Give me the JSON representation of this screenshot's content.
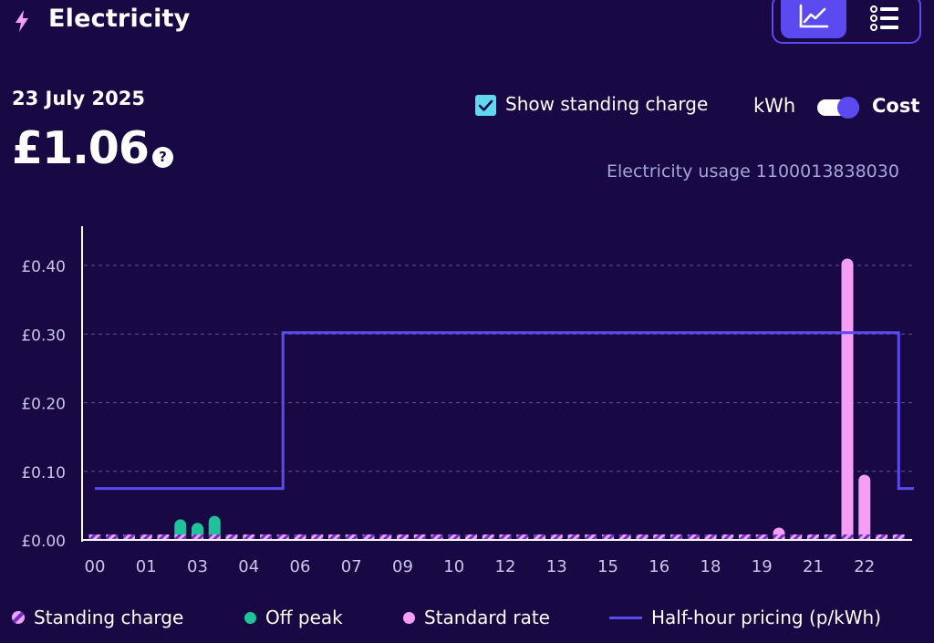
{
  "header": {
    "title": "Electricity",
    "icon": "lightning-icon"
  },
  "view_toggle": {
    "chart_icon": "line-chart-icon",
    "list_icon": "list-icon",
    "active": "chart"
  },
  "summary": {
    "date": "23 July 2025",
    "amount": "£1.06",
    "help_icon": "?"
  },
  "controls": {
    "standing_charge_label": "Show standing charge",
    "standing_charge_checked": true,
    "unit_left": "kWh",
    "unit_right": "Cost",
    "unit_selected": "Cost"
  },
  "usage_label": "Electricity usage 1100013838030",
  "colors": {
    "background": "#180843",
    "off_peak": "#20c29a",
    "standard": "#f59ef5",
    "standing_a": "#f59ef5",
    "standing_b": "#6a32c8",
    "pricing_line": "#5b4af0",
    "grid": "#5d5388"
  },
  "legend": {
    "standing": "Standing charge",
    "off_peak": "Off peak",
    "standard": "Standard rate",
    "pricing": "Half-hour pricing (p/kWh)"
  },
  "chart_data": {
    "type": "bar",
    "ylim": [
      0,
      0.45
    ],
    "yticks": [
      "£0.00",
      "£0.10",
      "£0.20",
      "£0.30",
      "£0.40"
    ],
    "ytick_values": [
      0,
      0.1,
      0.2,
      0.3,
      0.4
    ],
    "xtick_labels": [
      "00",
      "01",
      "03",
      "04",
      "06",
      "07",
      "09",
      "10",
      "12",
      "13",
      "15",
      "16",
      "18",
      "19",
      "21",
      "22"
    ],
    "xtick_slots": [
      0,
      3,
      6,
      9,
      12,
      15,
      18,
      21,
      24,
      27,
      30,
      33,
      36,
      39,
      42,
      45
    ],
    "slot_count": 48,
    "standing_charge": 0.008,
    "series": [
      {
        "name": "Off peak",
        "values": [
          0.01,
          0.01,
          0.01,
          0.01,
          0.01,
          0.03,
          0.025,
          0.035,
          0.01,
          0.01,
          0.01,
          0,
          0,
          0,
          0,
          0,
          0,
          0,
          0,
          0,
          0,
          0,
          0,
          0,
          0,
          0,
          0,
          0,
          0,
          0,
          0,
          0,
          0,
          0,
          0,
          0,
          0,
          0,
          0,
          0,
          0,
          0,
          0,
          0,
          0,
          0,
          0,
          0
        ]
      },
      {
        "name": "Standard rate",
        "values": [
          0,
          0,
          0,
          0,
          0,
          0,
          0,
          0,
          0,
          0,
          0,
          0.007,
          0.007,
          0.007,
          0.007,
          0.007,
          0.008,
          0.008,
          0.008,
          0.008,
          0.007,
          0.007,
          0.007,
          0.007,
          0.007,
          0.007,
          0.007,
          0.007,
          0.007,
          0.007,
          0.007,
          0.007,
          0.007,
          0.007,
          0.007,
          0.007,
          0.008,
          0.008,
          0.008,
          0.008,
          0.018,
          0.008,
          0.008,
          0.008,
          0.41,
          0.095,
          0.008,
          0.008
        ]
      }
    ],
    "pricing": {
      "name": "Half-hour pricing (p/kWh)",
      "segments": [
        {
          "from_slot": 0,
          "to_slot": 11,
          "value": 0.075
        },
        {
          "from_slot": 11,
          "to_slot": 47,
          "value": 0.302
        },
        {
          "from_slot": 47,
          "to_slot": 48,
          "value": 0.075
        }
      ]
    }
  }
}
